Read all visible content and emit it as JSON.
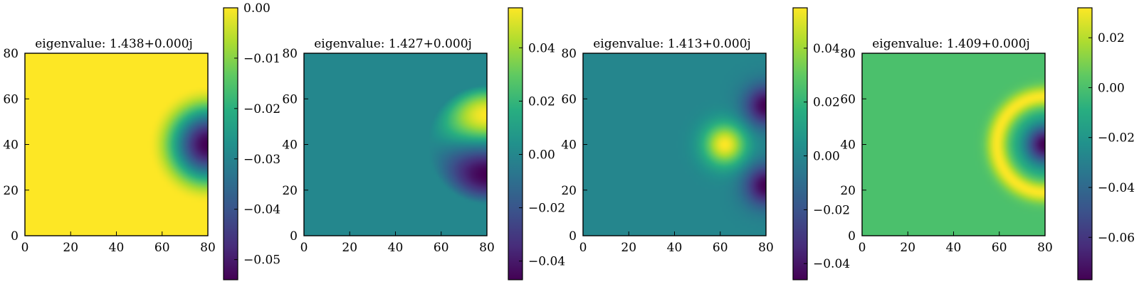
{
  "chart_data": [
    {
      "type": "heatmap",
      "title": "eigenvalue: 1.438+0.000j",
      "xlim": [
        0,
        80
      ],
      "ylim": [
        0,
        80
      ],
      "x_ticks": [
        "0",
        "20",
        "40",
        "60",
        "80"
      ],
      "y_ticks": [
        "0",
        "20",
        "40",
        "60",
        "80"
      ],
      "colormap": "viridis",
      "colorbar": {
        "min": -0.054,
        "max": 0.0,
        "ticks": [
          0.0,
          -0.01,
          -0.02,
          -0.03,
          -0.04,
          -0.05
        ],
        "tick_labels": [
          "0.00",
          "−0.01",
          "−0.02",
          "−0.03",
          "−0.04",
          "−0.05"
        ]
      },
      "mode": {
        "shape": "radial_single_lobe",
        "center": [
          80,
          40
        ],
        "extent": 26,
        "min": -0.054,
        "max": 0.0
      }
    },
    {
      "type": "heatmap",
      "title": "eigenvalue: 1.427+0.000j",
      "xlim": [
        0,
        80
      ],
      "ylim": [
        0,
        80
      ],
      "x_ticks": [
        "0",
        "20",
        "40",
        "60",
        "80"
      ],
      "y_ticks": [
        "0",
        "20",
        "40",
        "60",
        "80"
      ],
      "colormap": "viridis",
      "colorbar": {
        "min": -0.047,
        "max": 0.055,
        "ticks": [
          0.04,
          0.02,
          0.0,
          -0.02,
          -0.04
        ],
        "tick_labels": [
          "0.04",
          "0.02",
          "0.00",
          "−0.02",
          "−0.04"
        ]
      },
      "mode": {
        "shape": "dipole_vertical",
        "center": [
          80,
          40
        ],
        "extent": 26,
        "upper_value": 0.055,
        "lower_value": -0.047,
        "background": 0.0
      }
    },
    {
      "type": "heatmap",
      "title": "eigenvalue: 1.413+0.000j",
      "xlim": [
        0,
        80
      ],
      "ylim": [
        0,
        80
      ],
      "x_ticks": [
        "0",
        "20",
        "40",
        "60",
        "80"
      ],
      "y_ticks": [
        "0",
        "20",
        "40",
        "60",
        "80"
      ],
      "colormap": "viridis",
      "colorbar": {
        "min": -0.046,
        "max": 0.055,
        "ticks": [
          0.04,
          0.02,
          0.0,
          -0.02,
          -0.04
        ],
        "tick_labels": [
          "0.04",
          "0.02",
          "0.00",
          "−0.02",
          "−0.04"
        ]
      },
      "mode": {
        "shape": "tripole",
        "lobes": [
          {
            "x": 62,
            "y": 40,
            "value": 0.055
          },
          {
            "x": 80,
            "y": 57,
            "value": -0.046
          },
          {
            "x": 80,
            "y": 22,
            "value": -0.046
          }
        ],
        "background": 0.0
      }
    },
    {
      "type": "heatmap",
      "title": "eigenvalue: 1.409+0.000j",
      "xlim": [
        0,
        80
      ],
      "ylim": [
        0,
        80
      ],
      "x_ticks": [
        "0",
        "20",
        "40",
        "60",
        "80"
      ],
      "y_ticks": [
        "0",
        "20",
        "40",
        "60",
        "80"
      ],
      "colormap": "viridis",
      "colorbar": {
        "min": -0.077,
        "max": 0.032,
        "ticks": [
          0.02,
          0.0,
          -0.02,
          -0.04,
          -0.06
        ],
        "tick_labels": [
          "0.02",
          "0.00",
          "−0.02",
          "−0.04",
          "−0.06"
        ]
      },
      "mode": {
        "shape": "radial_ring",
        "center": [
          80,
          40
        ],
        "core_value": -0.077,
        "ring_radius": 21,
        "ring_value": 0.032,
        "background": 0.0,
        "extent": 29
      }
    }
  ]
}
